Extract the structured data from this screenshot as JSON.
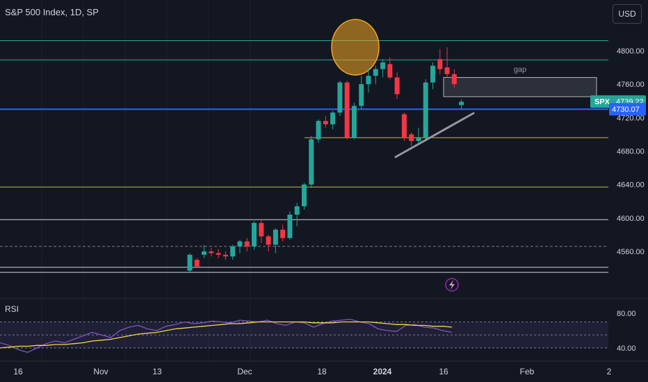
{
  "header": {
    "title": "S&P 500 Index, 1D, SP",
    "currency": "USD"
  },
  "annotations": {
    "gap_label": "gap",
    "spx_tag": "SPX",
    "spx_value": "4739.22",
    "blue_value": "4730.07"
  },
  "colors": {
    "background": "#131722",
    "up": "#26a69a",
    "down": "#f23645",
    "cyan_line": "#22ab94",
    "blue_line": "#2962ff",
    "yellow_line": "#c9b53f",
    "rsi_line": "#7e57c2",
    "rsi_ma": "#f7d64a",
    "circle": "#f5a623"
  },
  "chart_data": [
    {
      "type": "candlestick",
      "title": "S&P 500 Index, 1D, SP",
      "ylim": [
        4530,
        4830
      ],
      "y_ticks": [
        4560,
        4600,
        4640,
        4680,
        4720,
        4760,
        4800
      ],
      "y_tick_labels": [
        "4560.00",
        "4600.00",
        "4640.00",
        "4680.00",
        "4720.00",
        "4760.00",
        "4800.00"
      ],
      "x_tick_labels": [
        "16",
        "Nov",
        "13",
        "Dec",
        "18",
        "2024",
        "16",
        "Feb",
        "2"
      ],
      "horizontal_levels": [
        {
          "value": 4812,
          "color": "cyan"
        },
        {
          "value": 4789,
          "color": "cyan"
        },
        {
          "value": 4730.07,
          "color": "blue"
        },
        {
          "value": 4696,
          "color": "yellow"
        },
        {
          "value": 4637,
          "color": "yellow"
        },
        {
          "value": 4598,
          "color": "white"
        },
        {
          "value": 4566,
          "color": "dashed"
        },
        {
          "value": 4541,
          "color": "white"
        },
        {
          "value": 4535,
          "color": "white"
        }
      ],
      "gap_zone": {
        "low": 4745,
        "high": 4768
      },
      "candles": [
        [
          4537,
          4558,
          4535,
          4556
        ],
        [
          4550,
          4552,
          4540,
          4542
        ],
        [
          4556,
          4568,
          4552,
          4560
        ],
        [
          4560,
          4564,
          4554,
          4558
        ],
        [
          4558,
          4563,
          4552,
          4556
        ],
        [
          4556,
          4560,
          4550,
          4554
        ],
        [
          4554,
          4568,
          4550,
          4566
        ],
        [
          4566,
          4574,
          4558,
          4572
        ],
        [
          4572,
          4576,
          4560,
          4566
        ],
        [
          4566,
          4596,
          4562,
          4594
        ],
        [
          4594,
          4598,
          4570,
          4578
        ],
        [
          4578,
          4580,
          4560,
          4568
        ],
        [
          4568,
          4588,
          4558,
          4586
        ],
        [
          4586,
          4592,
          4572,
          4576
        ],
        [
          4576,
          4608,
          4574,
          4604
        ],
        [
          4604,
          4618,
          4590,
          4614
        ],
        [
          4614,
          4642,
          4610,
          4640
        ],
        [
          4640,
          4698,
          4636,
          4694
        ],
        [
          4694,
          4718,
          4690,
          4716
        ],
        [
          4716,
          4722,
          4708,
          4712
        ],
        [
          4712,
          4728,
          4706,
          4726
        ],
        [
          4726,
          4764,
          4722,
          4762
        ],
        [
          4762,
          4764,
          4694,
          4696
        ],
        [
          4696,
          4738,
          4694,
          4734
        ],
        [
          4734,
          4770,
          4730,
          4760
        ],
        [
          4760,
          4780,
          4750,
          4770
        ],
        [
          4770,
          4782,
          4760,
          4778
        ],
        [
          4778,
          4790,
          4768,
          4786
        ],
        [
          4784,
          4792,
          4766,
          4768
        ],
        [
          4768,
          4774,
          4742,
          4748
        ],
        [
          4724,
          4726,
          4692,
          4696
        ],
        [
          4700,
          4702,
          4686,
          4692
        ],
        [
          4692,
          4708,
          4688,
          4696
        ],
        [
          4696,
          4766,
          4694,
          4762
        ],
        [
          4762,
          4786,
          4754,
          4782
        ],
        [
          4790,
          4802,
          4772,
          4778
        ],
        [
          4780,
          4804,
          4768,
          4772
        ],
        [
          4772,
          4778,
          4756,
          4760
        ],
        [
          4735,
          4742,
          4730,
          4739
        ]
      ]
    },
    {
      "type": "line",
      "title": "RSI",
      "ylim": [
        32,
        88
      ],
      "y_ticks": [
        40,
        80
      ],
      "y_tick_labels": [
        "40.00",
        "80.00"
      ],
      "band": [
        40,
        70
      ],
      "series": [
        {
          "name": "RSI",
          "values": [
            46,
            43,
            38,
            35,
            40,
            45,
            48,
            46,
            50,
            54,
            58,
            55,
            52,
            60,
            64,
            66,
            62,
            60,
            65,
            67,
            70,
            68,
            69,
            71,
            70,
            69,
            72,
            71,
            70,
            72,
            68,
            66,
            70,
            69,
            64,
            68,
            71,
            72,
            73,
            70,
            68,
            62,
            60,
            59,
            66,
            67,
            64,
            63,
            60,
            58
          ]
        },
        {
          "name": "MA",
          "values": [
            40,
            41,
            42,
            42,
            43,
            43,
            44,
            44,
            45,
            46,
            48,
            49,
            50,
            52,
            54,
            56,
            57,
            58,
            60,
            62,
            63,
            64,
            65,
            66,
            67,
            68,
            68,
            69,
            70,
            70,
            70,
            70,
            70,
            70,
            69,
            69,
            69,
            70,
            70,
            70,
            70,
            69,
            68,
            67,
            67,
            66,
            66,
            65,
            65,
            64
          ]
        }
      ]
    }
  ]
}
